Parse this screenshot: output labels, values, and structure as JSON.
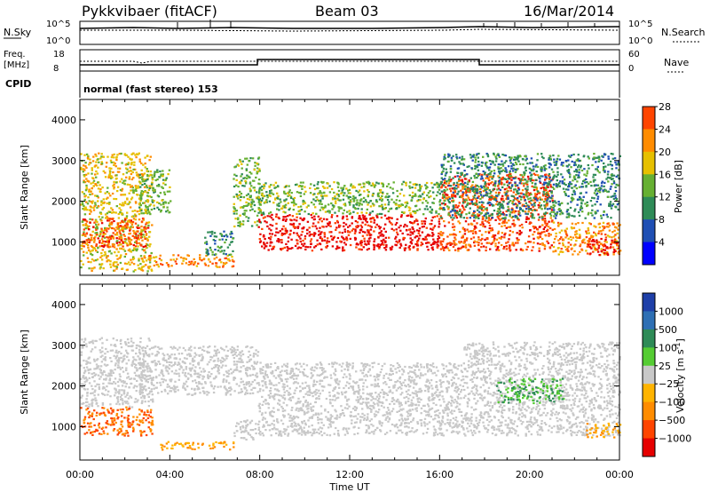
{
  "header": {
    "station": "Pykkvibaer (fitACF)",
    "beam": "Beam 03",
    "date": "16/Mar/2014"
  },
  "noise_panel": {
    "left_label": "N.Sky",
    "right_label": "N.Search",
    "left_ticks": [
      "10^5",
      "10^0"
    ],
    "right_ticks": [
      "10^5",
      "10^0"
    ]
  },
  "freq_panel": {
    "left_label_line1": "Freq.",
    "left_label_line2": "[MHz]",
    "right_label": "Nave",
    "left_ticks": [
      "18",
      "8"
    ],
    "right_ticks": [
      "60",
      "0"
    ],
    "cpid_label": "CPID",
    "cpid_text": "normal (fast stereo) 153"
  },
  "chart_data": [
    {
      "type": "heatmap",
      "quantity": "power",
      "ylabel": "Slant Range [km]",
      "ylim": [
        180,
        4500
      ],
      "yticks": [
        1000,
        2000,
        3000,
        4000
      ],
      "xlim_hours": [
        0,
        24
      ],
      "colorbar": {
        "label": "Power [dB]",
        "ticks": [
          "4",
          "8",
          "12",
          "16",
          "20",
          "24",
          "28"
        ],
        "colors": [
          "#0000ff",
          "#1f4fb4",
          "#2e8b57",
          "#66b032",
          "#e6c000",
          "#ff8c00",
          "#ff4500",
          "#e60000"
        ]
      },
      "echo_regions": [
        {
          "t0": 0.0,
          "t1": 3.2,
          "r0": 300,
          "r1": 3200,
          "level": 16
        },
        {
          "t0": 0.1,
          "t1": 3.0,
          "r0": 900,
          "r1": 1600,
          "level": 24
        },
        {
          "t0": 2.6,
          "t1": 4.0,
          "r0": 1700,
          "r1": 2800,
          "level": 12
        },
        {
          "t0": 3.0,
          "t1": 6.8,
          "r0": 400,
          "r1": 700,
          "level": 20
        },
        {
          "t0": 5.5,
          "t1": 6.8,
          "r0": 700,
          "r1": 1300,
          "level": 8
        },
        {
          "t0": 6.8,
          "t1": 8.0,
          "r0": 1400,
          "r1": 3100,
          "level": 12
        },
        {
          "t0": 7.9,
          "t1": 16.0,
          "r0": 800,
          "r1": 1700,
          "level": 28
        },
        {
          "t0": 7.9,
          "t1": 16.0,
          "r0": 1700,
          "r1": 2500,
          "level": 12
        },
        {
          "t0": 16.0,
          "t1": 21.0,
          "r0": 800,
          "r1": 2700,
          "level": 24
        },
        {
          "t0": 16.0,
          "t1": 24.0,
          "r0": 1600,
          "r1": 3200,
          "level": 8
        },
        {
          "t0": 21.0,
          "t1": 24.0,
          "r0": 700,
          "r1": 1500,
          "level": 20
        },
        {
          "t0": 22.5,
          "t1": 24.0,
          "r0": 700,
          "r1": 1100,
          "level": 28
        }
      ]
    },
    {
      "type": "heatmap",
      "quantity": "velocity",
      "ylabel": "Slant Range [km]",
      "ylim": [
        180,
        4500
      ],
      "yticks": [
        1000,
        2000,
        3000,
        4000
      ],
      "xlim_hours": [
        0,
        24
      ],
      "xticks": [
        "00:00",
        "04:00",
        "08:00",
        "12:00",
        "16:00",
        "20:00",
        "00:00"
      ],
      "xlabel": "Time UT",
      "colorbar": {
        "label": "Velocity",
        "label_unit": "[m s",
        "label_exp": "-1",
        "label_close": "]",
        "ticks": [
          "1000",
          "500",
          "100",
          "25",
          "−25",
          "−100",
          "−500",
          "−1000"
        ],
        "colors": [
          "#1e3fa8",
          "#2e6fb4",
          "#2e8b57",
          "#55cc33",
          "#aaee88",
          "#c8c8c8",
          "#ffb400",
          "#ff8c00",
          "#ff4500",
          "#e60000"
        ]
      },
      "echo_regions": [
        {
          "t0": 0.0,
          "t1": 3.2,
          "r0": 800,
          "r1": 1500,
          "v": -500
        },
        {
          "t0": 0.0,
          "t1": 3.2,
          "r0": 1500,
          "r1": 3200,
          "v": 0
        },
        {
          "t0": 2.6,
          "t1": 8.0,
          "r0": 1800,
          "r1": 3000,
          "v": 0
        },
        {
          "t0": 3.5,
          "t1": 6.8,
          "r0": 450,
          "r1": 650,
          "v": -100
        },
        {
          "t0": 6.8,
          "t1": 8.0,
          "r0": 700,
          "r1": 1200,
          "v": 0
        },
        {
          "t0": 7.9,
          "t1": 17.0,
          "r0": 800,
          "r1": 2600,
          "v": 0
        },
        {
          "t0": 17.0,
          "t1": 24.0,
          "r0": 800,
          "r1": 3100,
          "v": 0
        },
        {
          "t0": 18.5,
          "t1": 21.5,
          "r0": 1600,
          "r1": 2200,
          "v": 100
        },
        {
          "t0": 22.5,
          "t1": 24.0,
          "r0": 750,
          "r1": 1100,
          "v": -100
        }
      ]
    }
  ]
}
